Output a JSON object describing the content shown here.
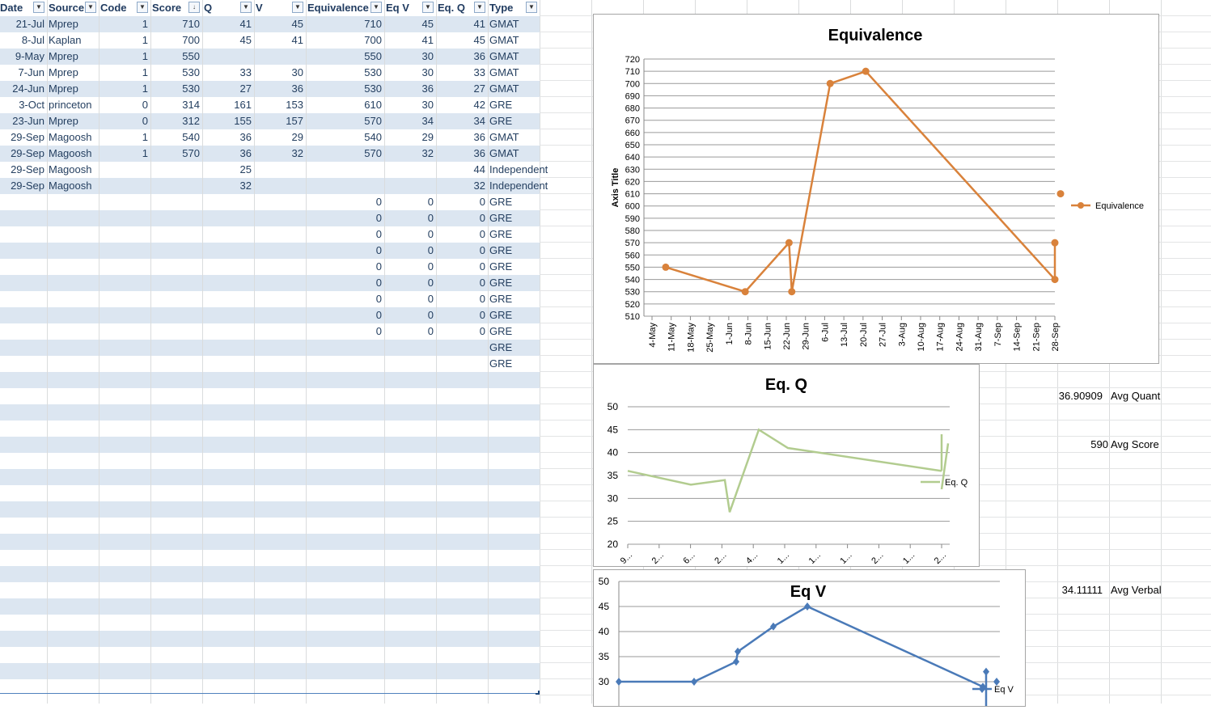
{
  "table": {
    "headers": [
      "Date",
      "Source",
      "Code",
      "Score",
      "Q",
      "V",
      "Equivalence",
      "Eq V",
      "Eq. Q",
      "Type"
    ],
    "rows": [
      [
        "21-Jul",
        "Mprep",
        "1",
        "710",
        "41",
        "45",
        "710",
        "45",
        "41",
        "GMAT"
      ],
      [
        "8-Jul",
        "Kaplan",
        "1",
        "700",
        "45",
        "41",
        "700",
        "41",
        "45",
        "GMAT"
      ],
      [
        "9-May",
        "Mprep",
        "1",
        "550",
        "",
        "",
        "550",
        "30",
        "36",
        "GMAT"
      ],
      [
        "7-Jun",
        "Mprep",
        "1",
        "530",
        "33",
        "30",
        "530",
        "30",
        "33",
        "GMAT"
      ],
      [
        "24-Jun",
        "Mprep",
        "1",
        "530",
        "27",
        "36",
        "530",
        "36",
        "27",
        "GMAT"
      ],
      [
        "3-Oct",
        "princeton",
        "0",
        "314",
        "161",
        "153",
        "610",
        "30",
        "42",
        "GRE"
      ],
      [
        "23-Jun",
        "Mprep",
        "0",
        "312",
        "155",
        "157",
        "570",
        "34",
        "34",
        "GRE"
      ],
      [
        "29-Sep",
        "Magoosh",
        "1",
        "540",
        "36",
        "29",
        "540",
        "29",
        "36",
        "GMAT"
      ],
      [
        "29-Sep",
        "Magoosh",
        "1",
        "570",
        "36",
        "32",
        "570",
        "32",
        "36",
        "GMAT"
      ],
      [
        "29-Sep",
        "Magoosh",
        "",
        "",
        "25",
        "",
        "",
        "",
        "44",
        "Independent"
      ],
      [
        "29-Sep",
        "Magoosh",
        "",
        "",
        "32",
        "",
        "",
        "",
        "32",
        "Independent"
      ],
      [
        "",
        "",
        "",
        "",
        "",
        "",
        "0",
        "0",
        "0",
        "GRE"
      ],
      [
        "",
        "",
        "",
        "",
        "",
        "",
        "0",
        "0",
        "0",
        "GRE"
      ],
      [
        "",
        "",
        "",
        "",
        "",
        "",
        "0",
        "0",
        "0",
        "GRE"
      ],
      [
        "",
        "",
        "",
        "",
        "",
        "",
        "0",
        "0",
        "0",
        "GRE"
      ],
      [
        "",
        "",
        "",
        "",
        "",
        "",
        "0",
        "0",
        "0",
        "GRE"
      ],
      [
        "",
        "",
        "",
        "",
        "",
        "",
        "0",
        "0",
        "0",
        "GRE"
      ],
      [
        "",
        "",
        "",
        "",
        "",
        "",
        "0",
        "0",
        "0",
        "GRE"
      ],
      [
        "",
        "",
        "",
        "",
        "",
        "",
        "0",
        "0",
        "0",
        "GRE"
      ],
      [
        "",
        "",
        "",
        "",
        "",
        "",
        "0",
        "0",
        "0",
        "GRE"
      ],
      [
        "",
        "",
        "",
        "",
        "",
        "",
        "",
        "",
        "",
        "GRE"
      ],
      [
        "",
        "",
        "",
        "",
        "",
        "",
        "",
        "",
        "",
        "GRE"
      ]
    ]
  },
  "summary": [
    {
      "value": "36.90909",
      "label": "Avg Quant"
    },
    {
      "value": "590",
      "label": "Avg Score"
    },
    {
      "value": "34.11111",
      "label": "Avg Verbal"
    }
  ],
  "colors": {
    "orange": "#d9823b",
    "green": "#b2cc8f",
    "blue": "#4a7ab8",
    "band": "#dce6f1"
  },
  "chart_data": [
    {
      "type": "line",
      "title": "Equivalence",
      "ylabel": "Axis Title",
      "legend": "Equivalence",
      "ylim": [
        510,
        720
      ],
      "yticks": [
        510,
        520,
        530,
        540,
        550,
        560,
        570,
        580,
        590,
        600,
        610,
        620,
        630,
        640,
        650,
        660,
        670,
        680,
        690,
        700,
        710,
        720
      ],
      "xticks": [
        "4-May",
        "11-May",
        "18-May",
        "25-May",
        "1-Jun",
        "8-Jun",
        "15-Jun",
        "22-Jun",
        "29-Jun",
        "6-Jul",
        "13-Jul",
        "20-Jul",
        "27-Jul",
        "3-Aug",
        "10-Aug",
        "17-Aug",
        "24-Aug",
        "31-Aug",
        "7-Sep",
        "14-Sep",
        "21-Sep",
        "28-Sep"
      ],
      "x_days": [
        5,
        34,
        50,
        51,
        65,
        78,
        147,
        147,
        152
      ],
      "values": [
        550,
        530,
        570,
        530,
        700,
        710,
        540,
        570,
        610
      ]
    },
    {
      "type": "line",
      "title": "Eq. Q",
      "legend": "Eq. Q",
      "ylim": [
        20,
        50
      ],
      "yticks": [
        20,
        25,
        30,
        35,
        40,
        45,
        50
      ],
      "xticks": [
        "9...",
        "2...",
        "6...",
        "2...",
        "4...",
        "1...",
        "1...",
        "1...",
        "2...",
        "1...",
        "2..."
      ],
      "x": [
        0,
        0.2,
        0.31,
        0.32,
        0.4,
        0.5,
        0.98,
        0.98,
        1.0
      ],
      "values": [
        36,
        33,
        34,
        27,
        45,
        41,
        36,
        44,
        32
      ]
    },
    {
      "type": "line",
      "title": "Eq V",
      "legend": "Eq V",
      "ylim": [
        27,
        50
      ],
      "yticks": [
        30,
        35,
        40,
        45,
        50
      ],
      "x": [
        0,
        0.2,
        0.31,
        0.32,
        0.4,
        0.5,
        0.98,
        0.98,
        1.0
      ],
      "values": [
        30,
        30,
        34,
        36,
        41,
        45,
        29,
        32,
        30
      ]
    }
  ]
}
